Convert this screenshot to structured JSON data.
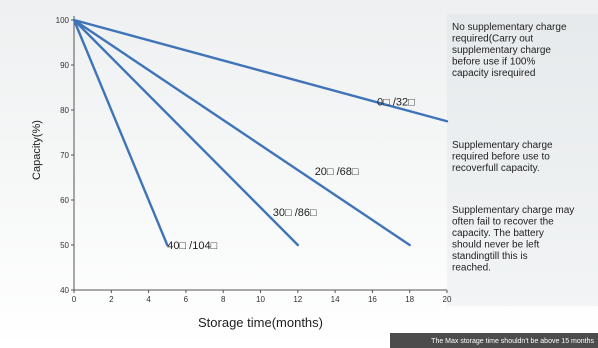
{
  "chart_data": {
    "type": "line",
    "xlabel": "Storage time(months)",
    "ylabel": "Capacity(%)",
    "xlim": [
      0,
      20
    ],
    "ylim": [
      40,
      100
    ],
    "xticks": [
      0,
      2,
      4,
      6,
      8,
      10,
      12,
      14,
      16,
      18,
      20
    ],
    "yticks": [
      40,
      50,
      60,
      70,
      80,
      90,
      100
    ],
    "grid": false,
    "series": [
      {
        "name": "0□ /32□",
        "x": [
          0,
          20
        ],
        "y": [
          100,
          77.5
        ]
      },
      {
        "name": "20□ /68□",
        "x": [
          0,
          18
        ],
        "y": [
          100,
          50
        ]
      },
      {
        "name": "30□ /86□",
        "x": [
          0,
          12
        ],
        "y": [
          100,
          50
        ]
      },
      {
        "name": "40□ /104□",
        "x": [
          0,
          5
        ],
        "y": [
          100,
          50
        ]
      }
    ],
    "line_color": "#3f74b8",
    "annotations": [
      "No supplementary charge required(Carry out supplementary charge before use if 100% capacity isrequired",
      "Supplementary charge required before use to recoverfull capacity.",
      "Supplementary charge may often fail to recover the capacity. The battery should never be left standingtill this is reached."
    ],
    "footnote": "The Max storage time shouldn't be above 15 months"
  }
}
